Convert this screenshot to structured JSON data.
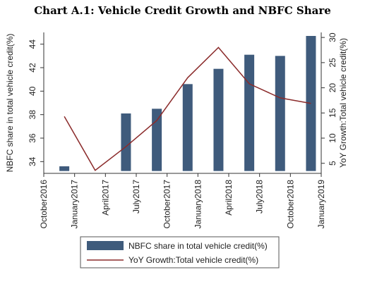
{
  "chart_data": {
    "type": "bar-line",
    "title": "Chart A.1: Vehicle Credit Growth and NBFC Share",
    "x_ticks": [
      "October2016",
      "January2017",
      "April2017",
      "July2017",
      "October2017",
      "January2018",
      "April2018",
      "July2018",
      "October2018",
      "January2019"
    ],
    "y_left": {
      "label": "NBFC share in total vehicle credit(%)",
      "range": [
        33,
        45
      ],
      "ticks": [
        34,
        36,
        38,
        40,
        42,
        44
      ]
    },
    "y_right": {
      "label": "YoY Growth:Total vehicle credit(%)",
      "range": [
        3,
        31
      ],
      "ticks": [
        5,
        10,
        15,
        20,
        25,
        30
      ]
    },
    "bars": {
      "name": "NBFC share in total vehicle credit(%)",
      "color": "#3f5b7c",
      "x": [
        "December2016",
        "June2017",
        "September2017",
        "December2017",
        "March2018",
        "June2018",
        "September2018",
        "December2018"
      ],
      "values": [
        33.6,
        38.1,
        38.5,
        40.6,
        41.9,
        43.1,
        43.0,
        44.7
      ]
    },
    "line": {
      "name": "YoY Growth:Total vehicle credit(%)",
      "color": "#8b2b2b",
      "x": [
        "December2016",
        "March2017",
        "June2017",
        "September2017",
        "December2017",
        "March2018",
        "June2018",
        "September2018",
        "December2018"
      ],
      "values": [
        14.3,
        3.6,
        8.3,
        13.5,
        22.0,
        28.0,
        20.8,
        18.0,
        16.9
      ]
    },
    "legend_position": "bottom",
    "grid": false
  }
}
